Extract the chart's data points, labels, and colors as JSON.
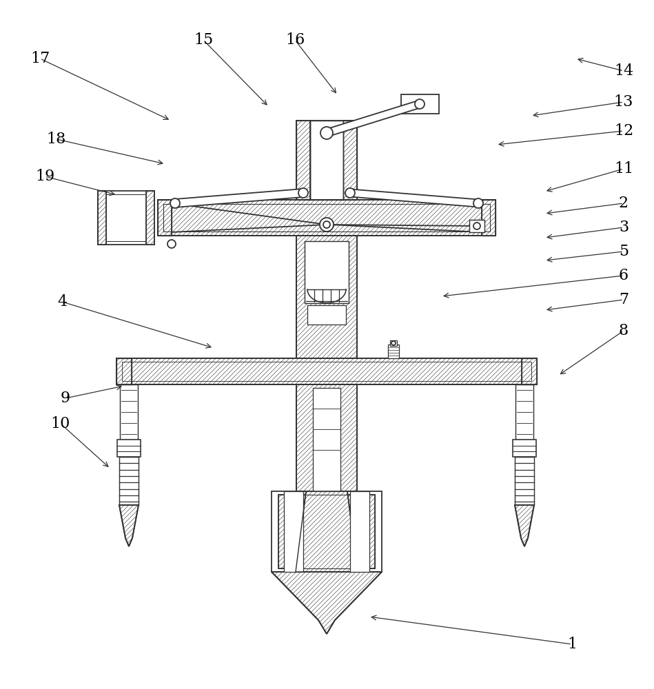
{
  "bg_color": "#ffffff",
  "lc": "#333333",
  "lw": 1.3,
  "hatch_lw": 0.4,
  "label_fs": 16,
  "figsize": [
    9.49,
    10.0
  ],
  "dpi": 100,
  "labels": [
    [
      1,
      830,
      935,
      535,
      895
    ],
    [
      2,
      905,
      295,
      790,
      310
    ],
    [
      3,
      905,
      330,
      790,
      345
    ],
    [
      4,
      90,
      438,
      310,
      505
    ],
    [
      5,
      905,
      365,
      790,
      378
    ],
    [
      6,
      905,
      400,
      640,
      430
    ],
    [
      7,
      905,
      435,
      790,
      450
    ],
    [
      8,
      905,
      480,
      810,
      545
    ],
    [
      9,
      95,
      578,
      180,
      560
    ],
    [
      10,
      88,
      615,
      160,
      680
    ],
    [
      11,
      905,
      245,
      790,
      278
    ],
    [
      12,
      905,
      190,
      720,
      210
    ],
    [
      13,
      905,
      148,
      770,
      168
    ],
    [
      14,
      905,
      103,
      835,
      85
    ],
    [
      15,
      295,
      58,
      390,
      155
    ],
    [
      16,
      428,
      58,
      490,
      138
    ],
    [
      17,
      58,
      85,
      248,
      175
    ],
    [
      18,
      82,
      202,
      240,
      238
    ],
    [
      19,
      65,
      256,
      170,
      283
    ]
  ]
}
